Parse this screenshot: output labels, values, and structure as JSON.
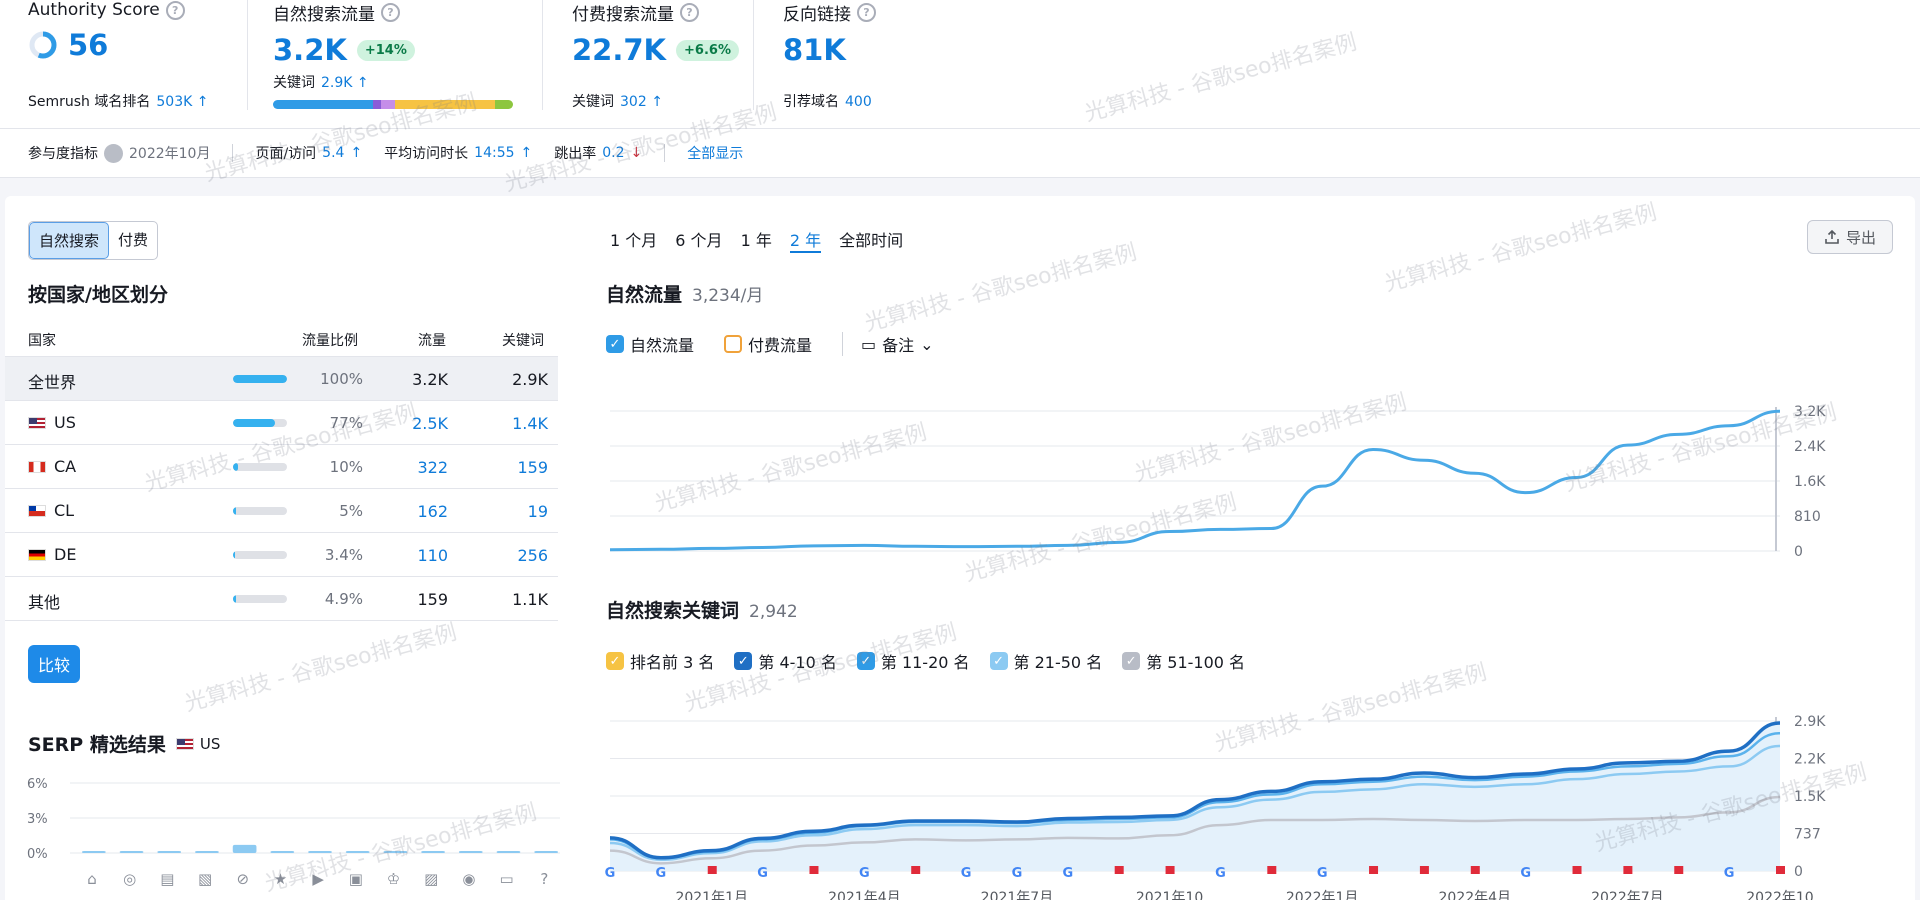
{
  "metrics": {
    "authority": {
      "title": "Authority Score",
      "value": "56",
      "score": 56,
      "sub_label": "Semrush 域名排名",
      "sub_value": "503K",
      "sub_arrow": "↑"
    },
    "organic": {
      "title": "自然搜索流量",
      "value": "3.2K",
      "badge": "+14%",
      "sub_label": "关键词",
      "sub_value": "2.9K",
      "sub_arrow": "↑"
    },
    "paid": {
      "title": "付费搜索流量",
      "value": "22.7K",
      "badge": "+6.6%",
      "sub_label": "关键词",
      "sub_value": "302",
      "sub_arrow": "↑"
    },
    "backlinks": {
      "title": "反向链接",
      "value": "81K",
      "sub_label": "引荐域名",
      "sub_value": "400"
    }
  },
  "engagement": {
    "label": "参与度指标",
    "date": "2022年10月",
    "pages_label": "页面/访问",
    "pages_value": "5.4",
    "duration_label": "平均访问时长",
    "duration_value": "14:55",
    "bounce_label": "跳出率",
    "bounce_value": "0.2",
    "show_all": "全部显示"
  },
  "colors": {
    "accent": "#0f7bd9",
    "bar": "#35b1ef",
    "up": "#0a7a47",
    "down": "#d1303c"
  },
  "left": {
    "toggle": [
      "自然搜索",
      "付费"
    ],
    "region_title": "按国家/地区划分",
    "headers": {
      "country": "国家",
      "share": "流量比例",
      "traffic": "流量",
      "keywords": "关键词"
    },
    "rows": [
      {
        "name": "全世界",
        "share": "100%",
        "share_frac": 1.0,
        "traffic": "3.2K",
        "keywords": "2.9K",
        "flag": ""
      },
      {
        "name": "US",
        "share": "77%",
        "share_frac": 0.77,
        "traffic": "2.5K",
        "keywords": "1.4K",
        "flag": "us"
      },
      {
        "name": "CA",
        "share": "10%",
        "share_frac": 0.1,
        "traffic": "322",
        "keywords": "159",
        "flag": "ca"
      },
      {
        "name": "CL",
        "share": "5%",
        "share_frac": 0.05,
        "traffic": "162",
        "keywords": "19",
        "flag": "cl"
      },
      {
        "name": "DE",
        "share": "3.4%",
        "share_frac": 0.034,
        "traffic": "110",
        "keywords": "256",
        "flag": "de"
      },
      {
        "name": "其他",
        "share": "4.9%",
        "share_frac": 0.049,
        "traffic": "159",
        "keywords": "1.1K",
        "flag": ""
      }
    ],
    "compare": "比较",
    "serp_title": "SERP 精选结果",
    "serp_country": "US",
    "serp_yticks": [
      "6%",
      "3%",
      "0%"
    ],
    "serp_values": [
      0.1,
      0.1,
      0.1,
      0.1,
      0.7,
      0.1,
      0.1,
      0.1,
      0.1,
      0.1,
      0.1,
      0.1,
      0.1
    ],
    "serp_icons": [
      "graduation-cap-icon",
      "location-pin-icon",
      "article-icon",
      "image-pack-icon",
      "link-icon",
      "star-icon",
      "video-icon",
      "video-carousel-icon",
      "crown-icon",
      "image-icon",
      "play-icon",
      "faq-icon",
      "question-icon"
    ]
  },
  "right": {
    "periods": [
      "1 个月",
      "6 个月",
      "1 年",
      "2 年",
      "全部时间"
    ],
    "active_period": "2 年",
    "export": "导出",
    "traffic_title": "自然流量",
    "traffic_value": "3,234/月",
    "traffic_checks": [
      {
        "label": "自然流量",
        "checked": true,
        "color": "#2f9be6"
      },
      {
        "label": "付费流量",
        "checked": false,
        "color": "#f0a23a"
      }
    ],
    "note_label": "备注",
    "kw_title": "自然搜索关键词",
    "kw_value": "2,942",
    "kw_checks": [
      {
        "label": "排名前 3 名",
        "checked": true,
        "color": "#f6c343"
      },
      {
        "label": "第 4-10 名",
        "checked": true,
        "color": "#1f6fc4"
      },
      {
        "label": "第 11-20 名",
        "checked": true,
        "color": "#2f9be6"
      },
      {
        "label": "第 21-50 名",
        "checked": true,
        "color": "#8ccaf2"
      },
      {
        "label": "第 51-100 名",
        "checked": true,
        "color": "#b8bcc6"
      }
    ]
  },
  "chart_data": [
    {
      "type": "line",
      "title": "自然流量",
      "x": [
        "2020-11",
        "2020-12",
        "2021-01",
        "2021-02",
        "2021-03",
        "2021-04",
        "2021-05",
        "2021-06",
        "2021-07",
        "2021-08",
        "2021-09",
        "2021-10",
        "2021-11",
        "2021-12",
        "2022-01",
        "2022-02",
        "2022-03",
        "2022-04",
        "2022-05",
        "2022-06",
        "2022-07",
        "2022-08",
        "2022-09",
        "2022-10"
      ],
      "xticks": [
        "2021年1月",
        "2021年4月",
        "2021年7月",
        "2021年10",
        "2022年1月",
        "2022年4月",
        "2022年7月",
        "2022年10"
      ],
      "yticks": [
        "3.2K",
        "2.4K",
        "1.6K",
        "810",
        "0"
      ],
      "ylim": [
        0,
        3240
      ],
      "series": [
        {
          "name": "自然流量",
          "values": [
            30,
            40,
            60,
            80,
            120,
            130,
            110,
            100,
            110,
            130,
            200,
            450,
            500,
            520,
            1500,
            2350,
            2100,
            1800,
            1350,
            1700,
            2450,
            2700,
            2900,
            3234
          ]
        }
      ]
    },
    {
      "type": "area",
      "title": "自然搜索关键词",
      "x": [
        "2020-11",
        "2020-12",
        "2021-01",
        "2021-02",
        "2021-03",
        "2021-04",
        "2021-05",
        "2021-06",
        "2021-07",
        "2021-08",
        "2021-09",
        "2021-10",
        "2021-11",
        "2021-12",
        "2022-01",
        "2022-02",
        "2022-03",
        "2022-04",
        "2022-05",
        "2022-06",
        "2022-07",
        "2022-08",
        "2022-09",
        "2022-10"
      ],
      "xticks": [
        "2021年1月",
        "2021年4月",
        "2021年7月",
        "2021年10",
        "2022年1月",
        "2022年4月",
        "2022年7月",
        "2022年10"
      ],
      "yticks": [
        "2.9K",
        "2.2K",
        "1.5K",
        "737",
        "0"
      ],
      "ylim": [
        0,
        2940
      ],
      "series": [
        {
          "name": "第 51-100 名",
          "values": [
            400,
            150,
            250,
            400,
            500,
            560,
            620,
            600,
            620,
            650,
            640,
            700,
            900,
            1000,
            1000,
            1020,
            1000,
            980,
            1000,
            1000,
            1020,
            1050,
            1150,
            1450
          ]
        },
        {
          "name": "第 21-50 名",
          "values": [
            550,
            220,
            350,
            580,
            700,
            820,
            900,
            900,
            880,
            950,
            960,
            1000,
            1250,
            1400,
            1550,
            1600,
            1700,
            1650,
            1700,
            1800,
            1900,
            1950,
            2050,
            2450
          ]
        },
        {
          "name": "第 11-20 名",
          "values": [
            620,
            250,
            380,
            620,
            750,
            880,
            960,
            960,
            940,
            1000,
            1020,
            1050,
            1350,
            1500,
            1700,
            1750,
            1850,
            1780,
            1850,
            1950,
            2050,
            2100,
            2250,
            2700
          ]
        },
        {
          "name": "第 4-10 名",
          "values": [
            650,
            260,
            400,
            640,
            780,
            900,
            980,
            980,
            960,
            1030,
            1050,
            1080,
            1400,
            1560,
            1750,
            1800,
            1920,
            1830,
            1900,
            2000,
            2120,
            2150,
            2350,
            2900
          ]
        }
      ]
    }
  ],
  "watermark": "光算科技 - 谷歌seo排名案例"
}
